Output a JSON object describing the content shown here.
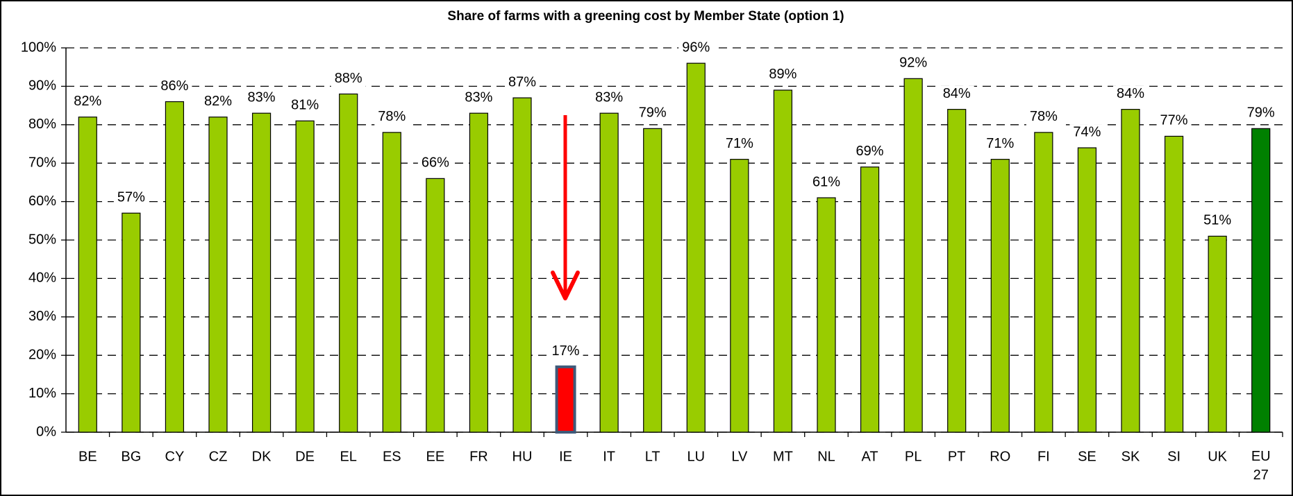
{
  "chart_data": {
    "type": "bar",
    "title": "Share of farms with a greening cost by Member State (option 1)",
    "categories": [
      "BE",
      "BG",
      "CY",
      "CZ",
      "DK",
      "DE",
      "EL",
      "ES",
      "EE",
      "FR",
      "HU",
      "IE",
      "IT",
      "LT",
      "LU",
      "LV",
      "MT",
      "NL",
      "AT",
      "PL",
      "PT",
      "RO",
      "FI",
      "SE",
      "SK",
      "SI",
      "UK",
      "EU 27"
    ],
    "values": [
      82,
      57,
      86,
      82,
      83,
      81,
      88,
      78,
      66,
      83,
      87,
      17,
      83,
      79,
      96,
      71,
      89,
      61,
      69,
      92,
      84,
      71,
      78,
      74,
      84,
      77,
      51,
      79
    ],
    "value_labels": [
      "82%",
      "57%",
      "86%",
      "82%",
      "83%",
      "81%",
      "88%",
      "78%",
      "66%",
      "83%",
      "87%",
      "17%",
      "83%",
      "79%",
      "96%",
      "71%",
      "89%",
      "61%",
      "69%",
      "92%",
      "84%",
      "71%",
      "78%",
      "74%",
      "84%",
      "77%",
      "51%",
      "79%"
    ],
    "colors": [
      "#99cc00",
      "#99cc00",
      "#99cc00",
      "#99cc00",
      "#99cc00",
      "#99cc00",
      "#99cc00",
      "#99cc00",
      "#99cc00",
      "#99cc00",
      "#99cc00",
      "#ff0000",
      "#99cc00",
      "#99cc00",
      "#99cc00",
      "#99cc00",
      "#99cc00",
      "#99cc00",
      "#99cc00",
      "#99cc00",
      "#99cc00",
      "#99cc00",
      "#99cc00",
      "#99cc00",
      "#99cc00",
      "#99cc00",
      "#99cc00",
      "#008000"
    ],
    "ylim": [
      0,
      100
    ],
    "yticks": [
      {
        "value": 0,
        "label": "0%"
      },
      {
        "value": 10,
        "label": "10%"
      },
      {
        "value": 20,
        "label": "20%"
      },
      {
        "value": 30,
        "label": "30%"
      },
      {
        "value": 40,
        "label": "40%"
      },
      {
        "value": 50,
        "label": "50%"
      },
      {
        "value": 60,
        "label": "60%"
      },
      {
        "value": 70,
        "label": "70%"
      },
      {
        "value": 80,
        "label": "80%"
      },
      {
        "value": 90,
        "label": "90%"
      },
      {
        "value": 100,
        "label": "100%"
      }
    ],
    "grid": true
  }
}
